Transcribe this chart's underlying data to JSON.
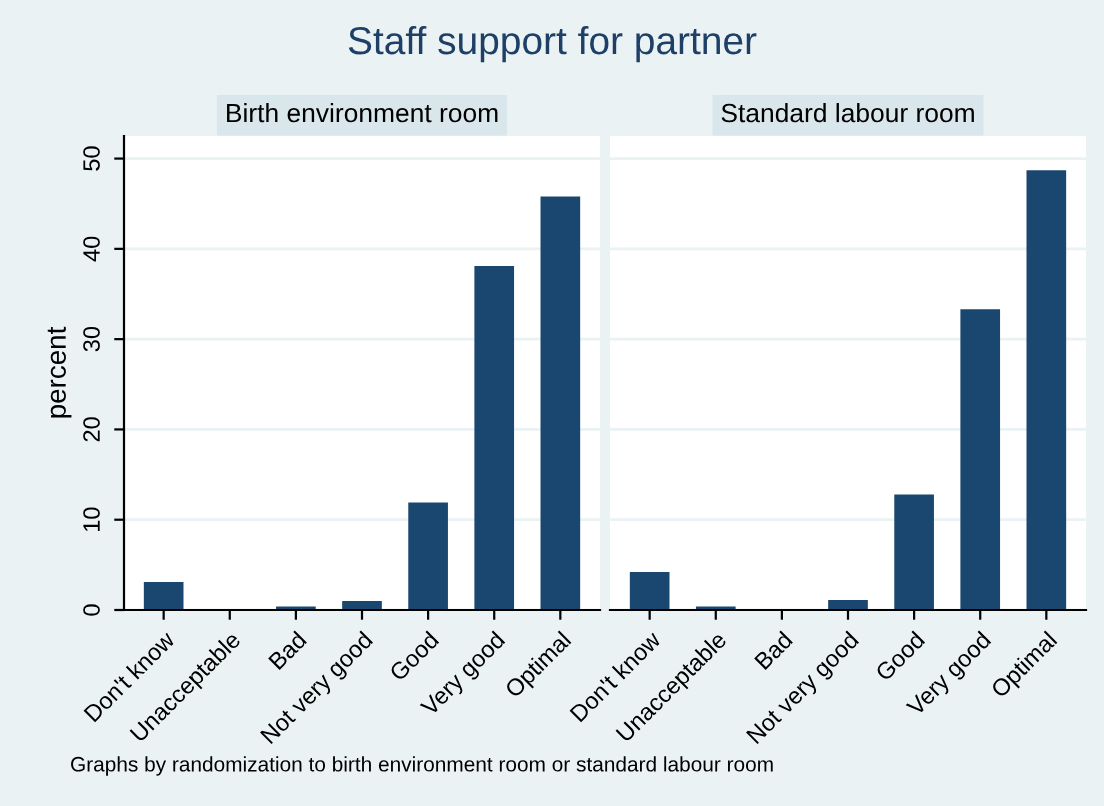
{
  "chart_data": [
    {
      "type": "bar",
      "title": "Staff support for partner",
      "subtitle": "Birth environment room",
      "ylabel": "percent",
      "categories": [
        "Don't know",
        "Unacceptable",
        "Bad",
        "Not very good",
        "Good",
        "Very good",
        "Optimal"
      ],
      "series": [
        {
          "color": "#1a476f",
          "values": [
            3.1,
            0,
            0.4,
            1.0,
            11.9,
            38.1,
            45.8
          ]
        }
      ],
      "ylim": [
        0,
        52.5
      ],
      "yticks": [
        0,
        10,
        20,
        30,
        40,
        50
      ],
      "grid": "y",
      "legend": false,
      "annotations": [
        "Graphs by randomization to birth environment room or standard labour room"
      ]
    },
    {
      "type": "bar",
      "subtitle": "Standard labour room",
      "categories": [
        "Don't know",
        "Unacceptable",
        "Bad",
        "Not very good",
        "Good",
        "Very good",
        "Optimal"
      ],
      "series": [
        {
          "color": "#1a476f",
          "values": [
            4.2,
            0.4,
            0,
            1.1,
            12.8,
            33.3,
            48.7
          ]
        }
      ],
      "ylim": [
        0,
        52.5
      ],
      "yticks": [
        0,
        10,
        20,
        30,
        40,
        50
      ],
      "grid": "y",
      "legend": false,
      "tick_labels": "x"
    }
  ]
}
